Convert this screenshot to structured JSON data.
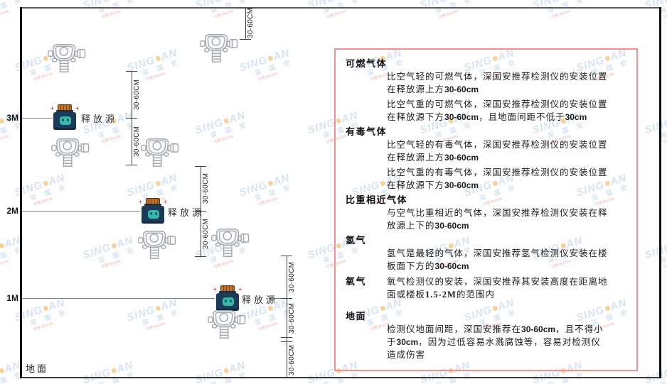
{
  "colors": {
    "panel_border": "#f19090",
    "watermark_blue": "#b3c8e6",
    "watermark_dot": "#f0a63c",
    "watermark_red": "#e06060",
    "source_body": "#1b3c59",
    "source_cap": "#c0722a",
    "source_face": "#37b8ab"
  },
  "watermark": {
    "brand_left": "SING",
    "brand_right": "AN",
    "sub": "深 国 安",
    "note": "代理:661434"
  },
  "diagram": {
    "heights": [
      {
        "label": "3M"
      },
      {
        "label": "2M"
      },
      {
        "label": "1M"
      }
    ],
    "ground_label": "地面",
    "source_label": "释放源",
    "dim_label": "30-60CM"
  },
  "panel": {
    "sections": [
      {
        "heading": "可燃气体",
        "paragraphs": [
          "比空气轻的可燃气体，深国安推荐检测仪的安装位置在释放源上方30-60cm",
          "比空气重的可燃气体，深国安推荐检测仪的安装位置在释放源下方30-60cm，且地面间距不低于30cm"
        ]
      },
      {
        "heading": "有毒气体",
        "paragraphs": [
          "比空气轻的有毒气体，深国安推荐检测仪的安装位置在释放源上方30-60cm",
          "比空气重的有毒气体，深国安推荐检测仪的安装位置在释放源下方30-60cm"
        ]
      },
      {
        "heading": "比重相近气体",
        "paragraphs": [
          "与空气比重相近的气体，深国安推荐检测仪安装在释放源上下的30-60cm"
        ]
      },
      {
        "heading": "氢气",
        "paragraphs": [
          "氢气是最轻的气体，深国安推荐氢气检测仪安装在楼板面下方的30-60cm"
        ]
      },
      {
        "heading": "氧气",
        "inline": true,
        "paragraphs": [
          "氧气检测仪的安装，深国安推荐其安装高度在距离地面或楼板1.5-2M的范围内"
        ]
      },
      {
        "heading": "地面",
        "paragraphs": [
          "检测仪地面间距，深国安推荐在30-60cm，且不得小于30cm，因为过低容易水溅腐蚀等，容易对检测仪造成伤害"
        ]
      }
    ]
  }
}
